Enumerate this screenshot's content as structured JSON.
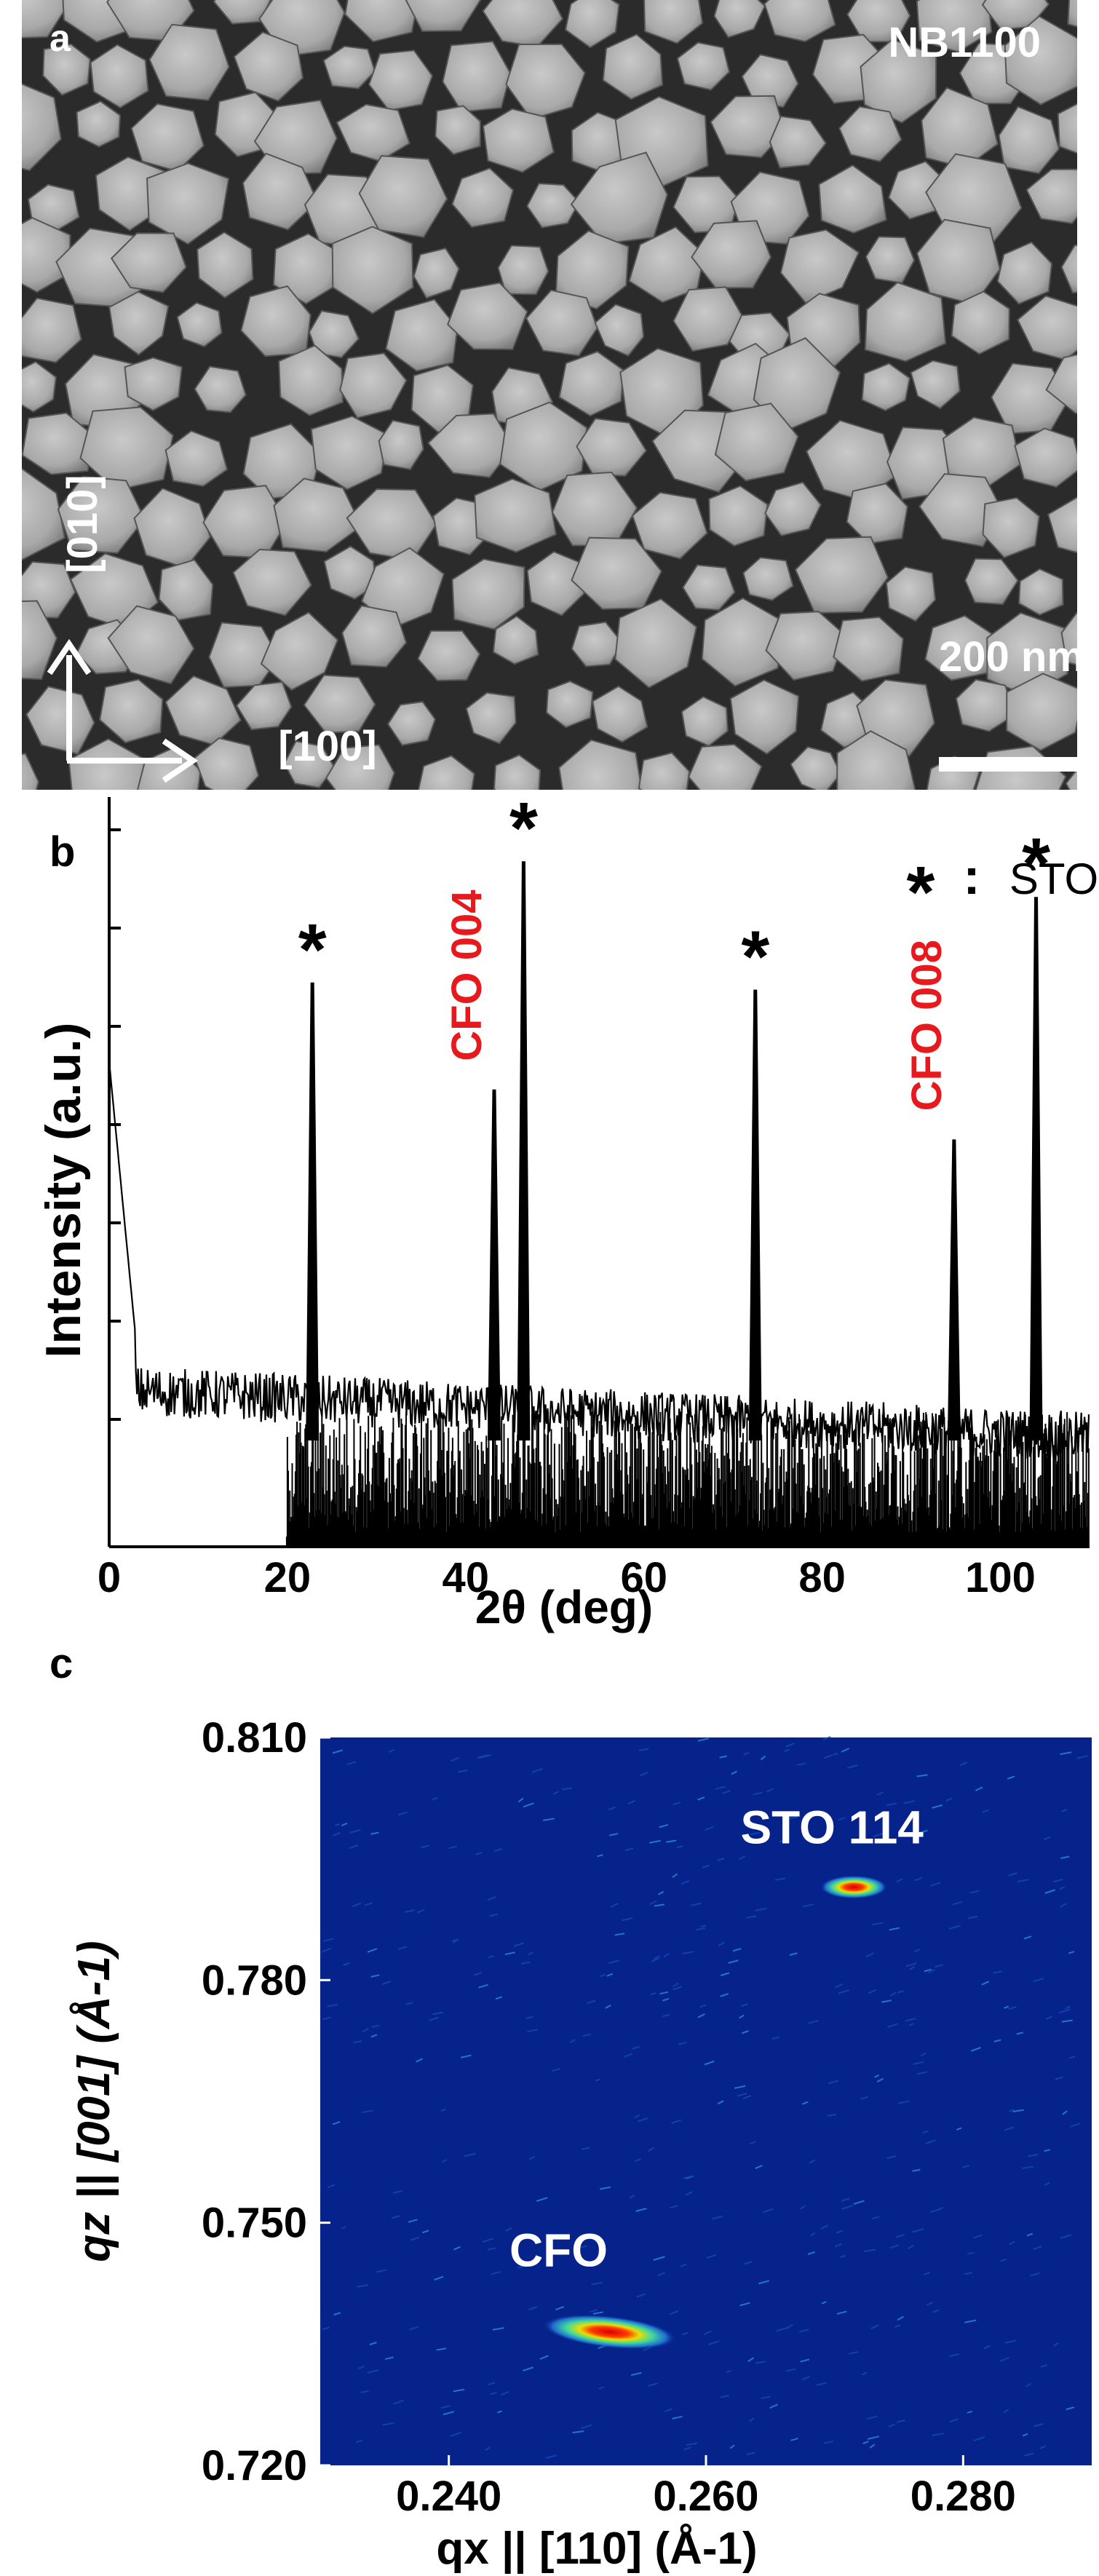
{
  "panel_a": {
    "letter": "a",
    "sample": "NB1100",
    "scale_bar": "200 nm",
    "dir_y": "[010]",
    "dir_x": "[100]"
  },
  "panel_b": {
    "letter": "b",
    "legend": {
      "symbol": "*",
      "sep": ":",
      "text": "STO"
    },
    "annotations": [
      "CFO 004",
      "CFO 008"
    ],
    "colors": {
      "cfo": "#e8191c",
      "trace": "#000000"
    }
  },
  "panel_c": {
    "letter": "c",
    "labels": {
      "sto": "STO 114",
      "cfo": "CFO"
    },
    "colors": {
      "background": "#06238c",
      "peak_core": "#d40000",
      "peak_mid": "#e8e000",
      "peak_edge": "#3fd6a0"
    }
  },
  "chart_data": [
    {
      "type": "line",
      "xlabel": "2θ (deg)",
      "ylabel": "Intensity (a.u.)",
      "xlim": [
        0,
        110
      ],
      "x_ticks": [
        0,
        20,
        40,
        60,
        80,
        100
      ],
      "y_ticks_labeled": false,
      "peaks": [
        {
          "x": 22.8,
          "y": 0.79,
          "label": "*"
        },
        {
          "x": 43.2,
          "y": 0.64,
          "label": "CFO 004"
        },
        {
          "x": 46.5,
          "y": 0.96,
          "label": "*"
        },
        {
          "x": 72.5,
          "y": 0.78,
          "label": "*"
        },
        {
          "x": 94.8,
          "y": 0.57,
          "label": "CFO 008"
        },
        {
          "x": 104.0,
          "y": 0.91,
          "label": "*"
        }
      ]
    },
    {
      "type": "heatmap",
      "xlabel": "qx || [110] (Å-1)",
      "ylabel": "qz || [001] (Å-1)",
      "xlim": [
        0.23,
        0.29
      ],
      "ylim": [
        0.72,
        0.81
      ],
      "x_ticks": [
        "0.240",
        "0.260",
        "0.280"
      ],
      "y_ticks": [
        "0.720",
        "0.750",
        "0.780",
        "0.810"
      ],
      "spots": [
        {
          "name": "STO 114",
          "qx": 0.2715,
          "qz": 0.7915
        },
        {
          "name": "CFO",
          "qx": 0.2525,
          "qz": 0.7365
        }
      ]
    }
  ]
}
